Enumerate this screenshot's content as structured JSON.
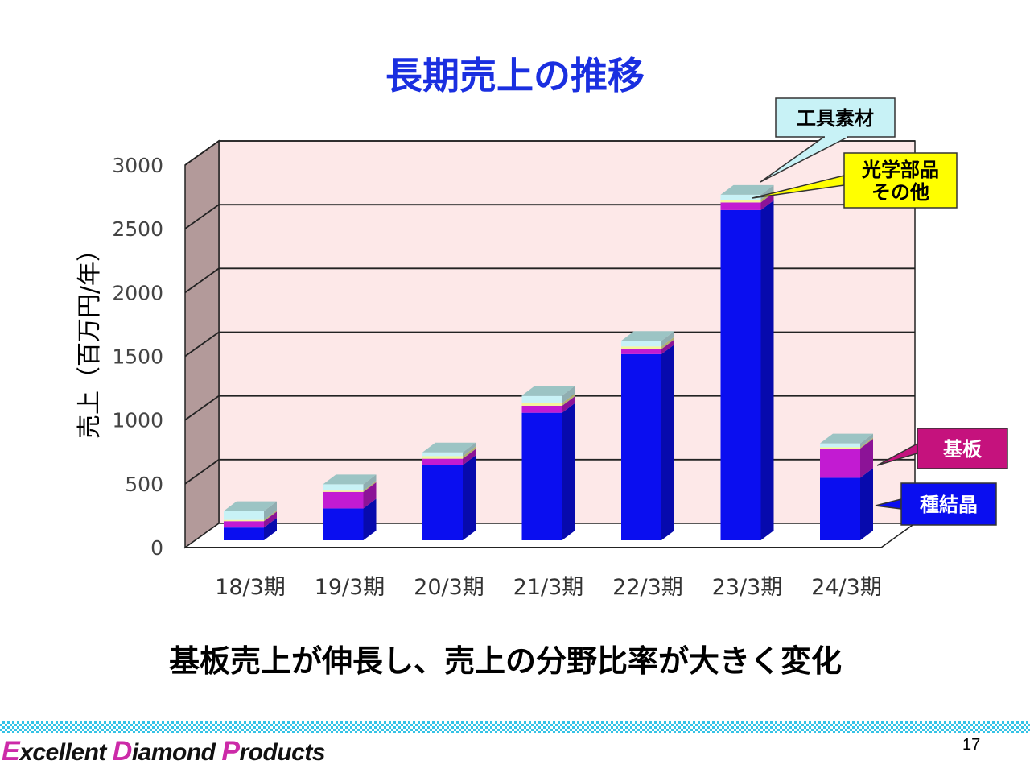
{
  "title": "長期売上の推移",
  "caption": "基板売上が伸長し、売上の分野比率が大きく変化",
  "footer": {
    "brand_parts": [
      {
        "cap": "E",
        "rest": "xcellent "
      },
      {
        "cap": "D",
        "rest": "iamond "
      },
      {
        "cap": "P",
        "rest": "roducts"
      }
    ],
    "page_number": "17"
  },
  "colors": {
    "title": "#1a2fe0",
    "seed_crystal": "#0a0ef0",
    "substrate": "#c21bd2",
    "optical_parts": "#f5f59c",
    "tool_material": "#c8f2f6",
    "plot_back": "#fde8e8",
    "plot_side": "#b39a9a",
    "brand_accent": "#cc2aa8"
  },
  "chart_data": {
    "type": "bar",
    "stacked": true,
    "ylabel": "売上（百万円/年）",
    "xlabel": "",
    "ylim": [
      0,
      3000
    ],
    "yticks": [
      "0",
      "500",
      "1000",
      "1500",
      "2000",
      "2500",
      "3000"
    ],
    "grid": true,
    "categories": [
      "18/3期",
      "19/3期",
      "20/3期",
      "21/3期",
      "22/3期",
      "23/3期",
      "24/3期"
    ],
    "series": [
      {
        "name": "種結晶",
        "color": "#0a0ef0",
        "values": [
          100,
          250,
          590,
          1000,
          1460,
          2590,
          490
        ]
      },
      {
        "name": "基板",
        "color": "#c21bd2",
        "values": [
          50,
          130,
          50,
          55,
          40,
          60,
          230
        ]
      },
      {
        "name": "光学部品その他",
        "color": "#f5f59c",
        "values": [
          10,
          10,
          20,
          20,
          20,
          20,
          10
        ]
      },
      {
        "name": "工具素材",
        "color": "#c8f2f6",
        "values": [
          70,
          50,
          30,
          60,
          45,
          40,
          30
        ]
      }
    ],
    "callouts": [
      {
        "lines": [
          "工具素材"
        ],
        "series": "工具素材",
        "bg": "#c8f2f6",
        "fg": "#000000"
      },
      {
        "lines": [
          "光学部品",
          "その他"
        ],
        "series": "光学部品その他",
        "bg": "#ffff00",
        "fg": "#000000"
      },
      {
        "lines": [
          "基板"
        ],
        "series": "基板",
        "bg": "#c5127d",
        "fg": "#ffffff"
      },
      {
        "lines": [
          "種結晶"
        ],
        "series": "種結晶",
        "bg": "#0a0ef0",
        "fg": "#ffffff"
      }
    ]
  }
}
